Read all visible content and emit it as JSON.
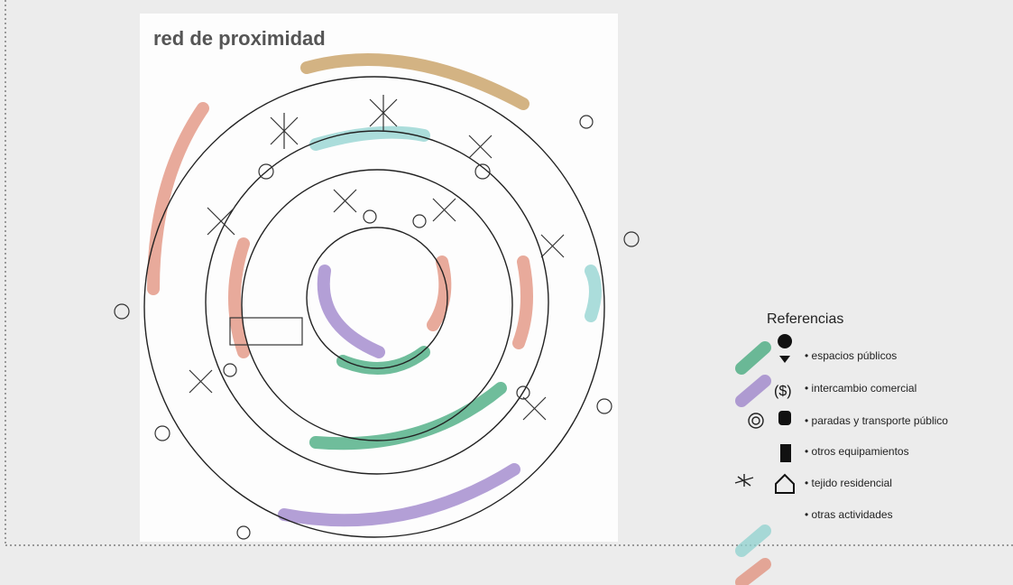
{
  "title": "red de proximidad",
  "legend": {
    "heading": "Referencias",
    "items": [
      "• espacios públicos",
      "• intercambio comercial",
      "• paradas y transporte público",
      "• otros equipamientos",
      "• tejido residencial",
      "• otras actividades"
    ]
  }
}
